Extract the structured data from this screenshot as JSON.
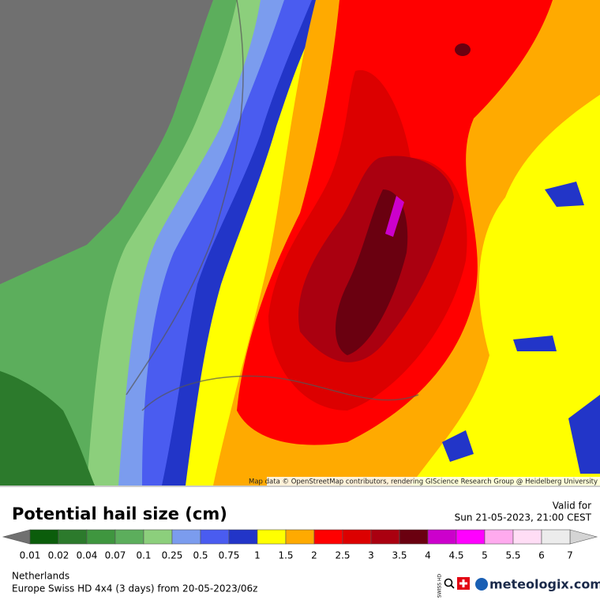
{
  "header": {
    "title": "Potential hail size (cm)",
    "valid_label": "Valid for",
    "valid_time": "Sun 21-05-2023, 21:00 CEST"
  },
  "map": {
    "attribution": "Map data © OpenStreetMap contributors, rendering GIScience Research Group @ Heidelberg University"
  },
  "legend": {
    "labels": [
      0.01,
      0.02,
      0.04,
      0.07,
      0.1,
      0.25,
      0.5,
      0.75,
      1,
      1.5,
      2,
      2.5,
      3,
      3.5,
      4,
      4.5,
      5,
      5.5,
      6,
      7
    ],
    "colors": [
      "#0b5d0b",
      "#2c7a2c",
      "#3f963f",
      "#5cae5c",
      "#8ccf7c",
      "#7b9cee",
      "#4a5cf0",
      "#2235c8",
      "#ffff00",
      "#ffaa00",
      "#ff0000",
      "#dc0000",
      "#aa0010",
      "#6a0010",
      "#cc00cc",
      "#ff00ff",
      "#ffaaee",
      "#ffddf5",
      "#ececec"
    ],
    "under_color": "#707070",
    "over_color": "#d4d4d4"
  },
  "footer": {
    "region": "Netherlands",
    "model": "Europe Swiss HD 4x4 (3 days) from 20-05-2023/06z",
    "badge": "SWISS HD",
    "brand": "meteologix.com"
  }
}
